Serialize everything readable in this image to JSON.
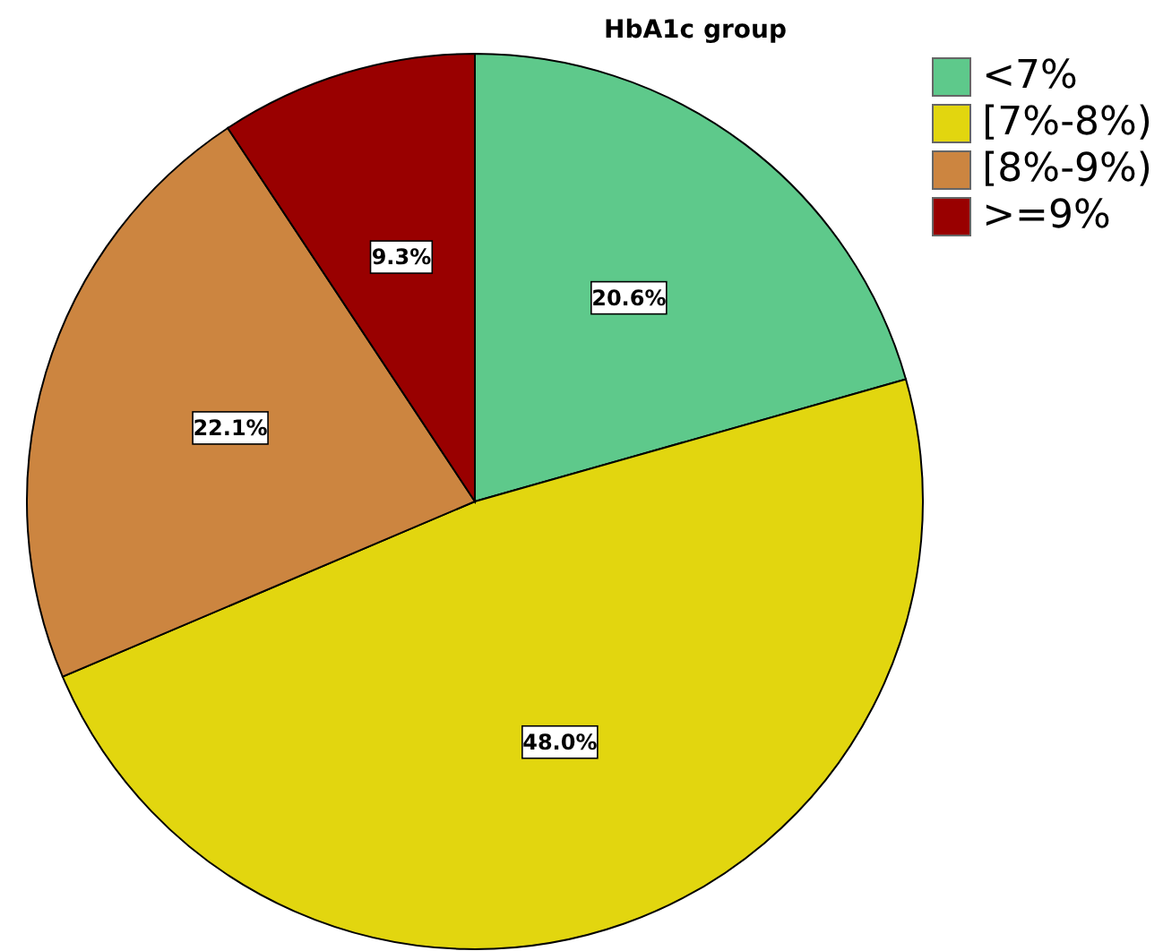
{
  "chart_data": {
    "type": "pie",
    "title": "HbA1c group",
    "categories": [
      "<7%",
      "[7%-8%)",
      "[8%-9%)",
      ">=9%"
    ],
    "values": [
      20.6,
      48.0,
      22.1,
      9.3
    ],
    "value_labels": [
      "20.6%",
      "48.0%",
      "22.1%",
      "9.3%"
    ],
    "colors": [
      "#5ec98b",
      "#e2d60f",
      "#cc8540",
      "#990000"
    ],
    "legend": "top right"
  }
}
